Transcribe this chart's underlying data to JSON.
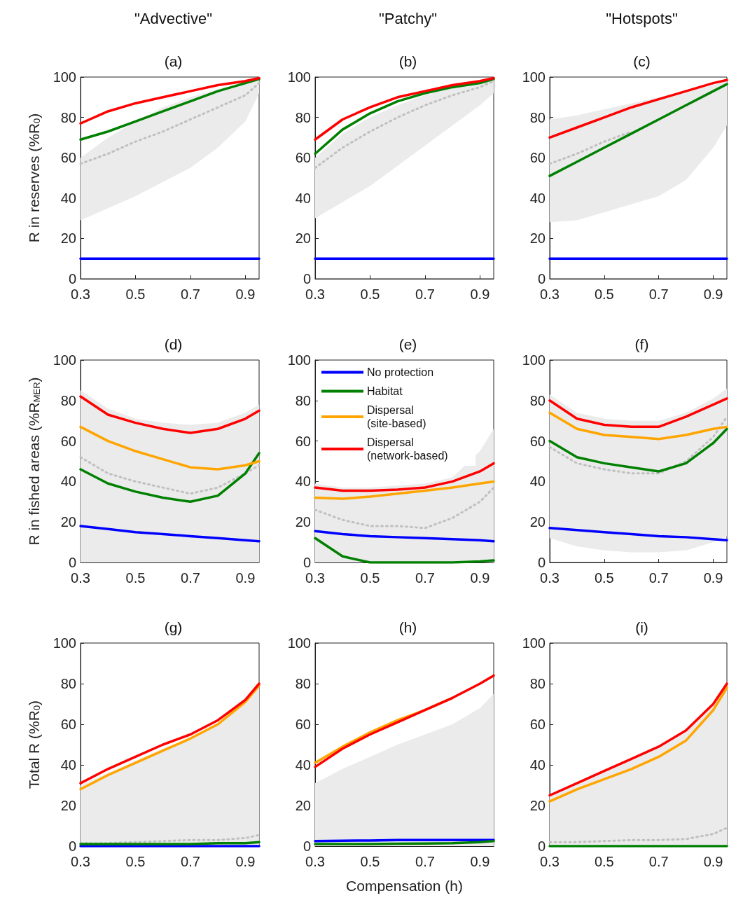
{
  "chart_data": [
    {
      "type": "line",
      "title": "(a)",
      "subtitle": "\"Advective\"",
      "ylabel": "R in reserves (%R$_{0}$)",
      "x": [
        0.3,
        0.4,
        0.5,
        0.6,
        0.7,
        0.8,
        0.9,
        0.95
      ],
      "xlim": [
        0.3,
        0.95
      ],
      "xticks": [
        0.3,
        0.5,
        0.7,
        0.9
      ],
      "ylim": [
        0,
        100
      ],
      "yticks": [
        0,
        20,
        40,
        60,
        80,
        100
      ],
      "marker": "none",
      "legend": false,
      "series": [
        {
          "color": "#c0c0c0",
          "line_style": "dotted",
          "values": [
            57,
            62,
            68,
            73,
            79,
            85,
            91,
            97
          ],
          "lower": [
            29,
            35,
            41,
            48,
            55,
            65,
            78,
            92
          ],
          "upper": [
            60,
            70,
            78,
            85,
            90,
            94,
            97,
            99
          ]
        },
        {
          "color": "#0000ff",
          "values": [
            10,
            10,
            10,
            10,
            10,
            10,
            10,
            10
          ]
        },
        {
          "color": "#008000",
          "values": [
            69,
            73,
            78,
            83,
            88,
            93,
            97,
            99
          ]
        },
        {
          "color": "#ff0000",
          "values": [
            77,
            83,
            87,
            90,
            93,
            96,
            98,
            99.5
          ]
        }
      ]
    },
    {
      "type": "line",
      "title": "(b)",
      "subtitle": "\"Patchy\"",
      "x": [
        0.3,
        0.4,
        0.5,
        0.6,
        0.7,
        0.8,
        0.9,
        0.95
      ],
      "xlim": [
        0.3,
        0.95
      ],
      "xticks": [
        0.3,
        0.5,
        0.7,
        0.9
      ],
      "ylim": [
        0,
        100
      ],
      "yticks": [
        0,
        20,
        40,
        60,
        80,
        100
      ],
      "marker": "none",
      "legend": false,
      "series": [
        {
          "color": "#c0c0c0",
          "line_style": "dotted",
          "values": [
            55,
            65,
            73,
            80,
            86,
            91,
            95,
            98
          ],
          "lower": [
            30,
            38,
            46,
            56,
            66,
            76,
            86,
            92
          ],
          "upper": [
            60,
            72,
            80,
            86,
            91,
            95,
            98,
            100
          ]
        },
        {
          "color": "#0000ff",
          "values": [
            10,
            10,
            10,
            10,
            10,
            10,
            10,
            10
          ]
        },
        {
          "color": "#008000",
          "values": [
            62,
            74,
            82,
            88,
            92,
            95,
            97,
            99
          ]
        },
        {
          "color": "#ff0000",
          "values": [
            69,
            79,
            85,
            90,
            93,
            96,
            98,
            99.5
          ]
        }
      ]
    },
    {
      "type": "line",
      "title": "(c)",
      "subtitle": "\"Hotspots\"",
      "x": [
        0.3,
        0.4,
        0.5,
        0.6,
        0.7,
        0.8,
        0.9,
        0.95
      ],
      "xlim": [
        0.3,
        0.95
      ],
      "xticks": [
        0.3,
        0.5,
        0.7,
        0.9
      ],
      "ylim": [
        0,
        100
      ],
      "yticks": [
        0,
        20,
        40,
        60,
        80,
        100
      ],
      "marker": "none",
      "legend": false,
      "series": [
        {
          "color": "#c0c0c0",
          "line_style": "dotted",
          "values": [
            57,
            62,
            68,
            73,
            null,
            null,
            null,
            null
          ],
          "lower": [
            28,
            29,
            33,
            37,
            41,
            49,
            65,
            76
          ],
          "upper": [
            79,
            81,
            84,
            87,
            90,
            93,
            96,
            98
          ]
        },
        {
          "color": "#0000ff",
          "values": [
            10,
            10,
            10,
            10,
            10,
            10,
            10,
            10
          ]
        },
        {
          "color": "#008000",
          "values": [
            51,
            58,
            65,
            72,
            79,
            86,
            93,
            96.5
          ]
        },
        {
          "color": "#ff0000",
          "values": [
            70,
            75,
            80,
            85,
            89,
            93,
            97,
            98.5
          ]
        }
      ]
    },
    {
      "type": "line",
      "title": "(d)",
      "ylabel": "R in fished areas (%R$_{MER}$)",
      "x": [
        0.3,
        0.4,
        0.5,
        0.6,
        0.7,
        0.8,
        0.9,
        0.95
      ],
      "xlim": [
        0.3,
        0.95
      ],
      "xticks": [
        0.3,
        0.5,
        0.7,
        0.9
      ],
      "ylim": [
        0,
        100
      ],
      "yticks": [
        0,
        20,
        40,
        60,
        80,
        100
      ],
      "marker": "none",
      "legend": false,
      "series": [
        {
          "color": "#c0c0c0",
          "line_style": "dotted",
          "values": [
            52,
            44,
            40,
            37,
            34,
            37,
            44,
            48
          ],
          "lower": [
            0,
            0,
            0,
            0,
            0,
            0,
            0,
            0
          ],
          "upper": [
            85,
            76,
            71,
            69,
            68,
            69,
            74,
            78
          ]
        },
        {
          "color": "#0000ff",
          "values": [
            18,
            16.5,
            15,
            14,
            13,
            12,
            11,
            10.5
          ]
        },
        {
          "color": "#008000",
          "values": [
            46,
            39,
            35,
            32,
            30,
            33,
            44,
            54
          ]
        },
        {
          "color": "#ffa500",
          "values": [
            67,
            60,
            55,
            51,
            47,
            46,
            48,
            50
          ]
        },
        {
          "color": "#ff0000",
          "values": [
            82,
            73,
            69,
            66,
            64,
            66,
            71,
            75
          ]
        }
      ]
    },
    {
      "type": "line",
      "title": "(e)",
      "x": [
        0.3,
        0.4,
        0.5,
        0.6,
        0.7,
        0.8,
        0.9,
        0.95
      ],
      "xlim": [
        0.3,
        0.95
      ],
      "xticks": [
        0.3,
        0.5,
        0.7,
        0.9
      ],
      "ylim": [
        0,
        100
      ],
      "yticks": [
        0,
        20,
        40,
        60,
        80,
        100
      ],
      "marker": "none",
      "legend": "top left",
      "series": [
        {
          "color": "#c0c0c0",
          "line_style": "dotted",
          "values": [
            26,
            21,
            18,
            18,
            17,
            22,
            30,
            37
          ],
          "lower": [
            0,
            0,
            0,
            0,
            0,
            0,
            0,
            0
          ],
          "upper": [
            39,
            37,
            37,
            38,
            39,
            42,
            55,
            66
          ]
        },
        {
          "name": "No protection",
          "color": "#0000ff",
          "values": [
            15.5,
            14,
            13,
            12.5,
            12,
            11.5,
            11,
            10.5
          ]
        },
        {
          "name": "Habitat",
          "color": "#008000",
          "values": [
            12,
            3,
            0,
            0,
            0,
            0,
            0.5,
            1
          ]
        },
        {
          "name": "Dispersal (site-based)",
          "color": "#ffa500",
          "values": [
            32,
            31.5,
            32.5,
            34,
            35.5,
            37,
            39,
            40
          ]
        },
        {
          "name": "Dispersal (network-based)",
          "color": "#ff0000",
          "values": [
            37,
            35.5,
            35.5,
            36,
            37,
            40,
            45,
            49
          ]
        }
      ]
    },
    {
      "type": "line",
      "title": "(f)",
      "x": [
        0.3,
        0.4,
        0.5,
        0.6,
        0.7,
        0.8,
        0.9,
        0.95
      ],
      "xlim": [
        0.3,
        0.95
      ],
      "xticks": [
        0.3,
        0.5,
        0.7,
        0.9
      ],
      "ylim": [
        0,
        100
      ],
      "yticks": [
        0,
        20,
        40,
        60,
        80,
        100
      ],
      "marker": "none",
      "legend": false,
      "series": [
        {
          "color": "#c0c0c0",
          "line_style": "dotted",
          "values": [
            57,
            49,
            46,
            44,
            44,
            50,
            62,
            72
          ],
          "lower": [
            12,
            8,
            6,
            5,
            5,
            6,
            10,
            13
          ],
          "upper": [
            83,
            74,
            71,
            70,
            70,
            74,
            81,
            86
          ]
        },
        {
          "color": "#0000ff",
          "values": [
            17,
            16,
            15,
            14,
            13,
            12.5,
            11.5,
            11
          ]
        },
        {
          "color": "#008000",
          "values": [
            60,
            52,
            49,
            47,
            45,
            49,
            59,
            66
          ]
        },
        {
          "color": "#ffa500",
          "values": [
            74,
            66,
            63,
            62,
            61,
            63,
            66,
            67
          ]
        },
        {
          "color": "#ff0000",
          "values": [
            80,
            71,
            68,
            67,
            67,
            72,
            78,
            81
          ]
        }
      ]
    },
    {
      "type": "line",
      "title": "(g)",
      "ylabel": "Total R (%R$_{0}$)",
      "x": [
        0.3,
        0.4,
        0.5,
        0.6,
        0.7,
        0.8,
        0.9,
        0.95
      ],
      "xlim": [
        0.3,
        0.95
      ],
      "xticks": [
        0.3,
        0.5,
        0.7,
        0.9
      ],
      "ylim": [
        0,
        100
      ],
      "yticks": [
        0,
        20,
        40,
        60,
        80,
        100
      ],
      "marker": "none",
      "legend": false,
      "series": [
        {
          "color": "#c0c0c0",
          "line_style": "dotted",
          "values": [
            1.5,
            1.5,
            2,
            2.5,
            3,
            3,
            4,
            5.5
          ],
          "lower": [
            0,
            0,
            0,
            0,
            0,
            0,
            0,
            0
          ],
          "upper": [
            30,
            36,
            42,
            48,
            53,
            60,
            70,
            78
          ]
        },
        {
          "color": "#0000ff",
          "values": [
            0,
            0,
            0,
            0,
            0,
            0,
            0,
            0
          ]
        },
        {
          "color": "#008000",
          "values": [
            1,
            1,
            1,
            1,
            1,
            1.5,
            1.5,
            2
          ]
        },
        {
          "color": "#ffa500",
          "values": [
            28,
            35,
            41,
            47,
            53,
            60,
            71,
            79
          ]
        },
        {
          "color": "#ff0000",
          "values": [
            31,
            38,
            44,
            50,
            55,
            62,
            72,
            80
          ]
        }
      ]
    },
    {
      "type": "line",
      "title": "(h)",
      "xlabel": "Compensation (h)",
      "x": [
        0.3,
        0.4,
        0.5,
        0.6,
        0.7,
        0.8,
        0.9,
        0.95
      ],
      "xlim": [
        0.3,
        0.95
      ],
      "xticks": [
        0.3,
        0.5,
        0.7,
        0.9
      ],
      "ylim": [
        0,
        100
      ],
      "yticks": [
        0,
        20,
        40,
        60,
        80,
        100
      ],
      "marker": "none",
      "legend": false,
      "series": [
        {
          "color": "#c0c0c0",
          "line_style": "dotted",
          "values": [
            null,
            null,
            null,
            null,
            null,
            null,
            null,
            null
          ],
          "lower": [
            0,
            0,
            0,
            0,
            0,
            0,
            0,
            0
          ],
          "upper": [
            31,
            38,
            44,
            50,
            55,
            60,
            68,
            75
          ]
        },
        {
          "color": "#0000ff",
          "values": [
            2.5,
            2.7,
            2.8,
            3,
            3,
            3,
            3,
            3
          ]
        },
        {
          "color": "#008000",
          "values": [
            1,
            1,
            1,
            1.2,
            1.3,
            1.5,
            2,
            2.5
          ]
        },
        {
          "color": "#ffa500",
          "values": [
            41,
            49,
            56,
            62,
            67,
            73,
            null,
            null
          ]
        },
        {
          "color": "#ff0000",
          "values": [
            39,
            48,
            55,
            61,
            67,
            73,
            80,
            84
          ]
        }
      ]
    },
    {
      "type": "line",
      "title": "(i)",
      "x": [
        0.3,
        0.4,
        0.5,
        0.6,
        0.7,
        0.8,
        0.9,
        0.95
      ],
      "xlim": [
        0.3,
        0.95
      ],
      "xticks": [
        0.3,
        0.5,
        0.7,
        0.9
      ],
      "ylim": [
        0,
        100
      ],
      "yticks": [
        0,
        20,
        40,
        60,
        80,
        100
      ],
      "marker": "none",
      "legend": false,
      "series": [
        {
          "color": "#c0c0c0",
          "line_style": "dotted",
          "values": [
            2,
            2,
            2.5,
            3,
            3,
            3.5,
            6,
            9
          ],
          "lower": [
            0,
            0,
            0,
            0,
            0,
            0,
            0,
            0
          ],
          "upper": [
            25,
            31,
            37,
            43,
            48,
            56,
            69,
            79
          ]
        },
        {
          "color": "#008000",
          "values": [
            0,
            0,
            0,
            0,
            0,
            0,
            0,
            0
          ]
        },
        {
          "color": "#ffa500",
          "values": [
            22,
            28,
            33,
            38,
            44,
            52,
            67,
            78
          ]
        },
        {
          "color": "#ff0000",
          "values": [
            25,
            31,
            37,
            43,
            49,
            57,
            70,
            80
          ]
        }
      ]
    }
  ]
}
